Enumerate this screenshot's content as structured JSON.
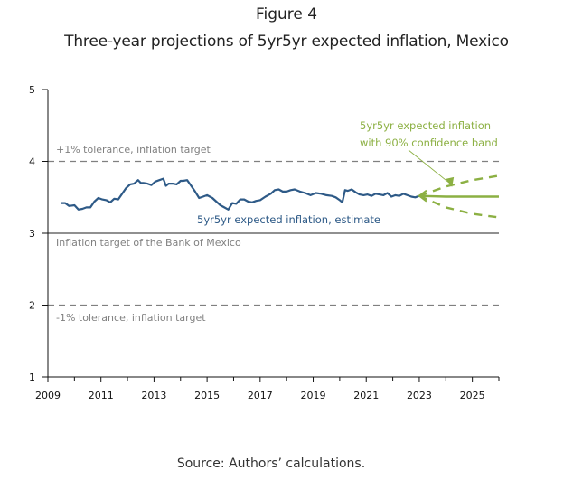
{
  "figure_label": "Figure 4",
  "title": "Three-year projections of 5yr5yr expected inflation, Mexico",
  "source": "Source: Authors’ calculations.",
  "colors": {
    "estimate": "#2e5a87",
    "projection": "#8cb043",
    "reference": "#808080",
    "axis": "#111111"
  },
  "chart_data": {
    "type": "line",
    "title": "Three-year projections of 5yr5yr expected inflation, Mexico",
    "xlabel": "",
    "ylabel": "",
    "xlim": [
      2009,
      2026
    ],
    "ylim": [
      1,
      5
    ],
    "grid": false,
    "x_ticks": [
      2009,
      2011,
      2013,
      2015,
      2017,
      2019,
      2021,
      2023,
      2025
    ],
    "x_tick_labels": [
      "2009",
      "2011",
      "2013",
      "2015",
      "2017",
      "2019",
      "2021",
      "2023",
      "2025"
    ],
    "y_ticks": [
      1,
      2,
      3,
      4,
      5
    ],
    "y_tick_labels": [
      "1",
      "2",
      "3",
      "4",
      "5"
    ],
    "reference_lines": [
      {
        "name": "upper-tolerance",
        "y": 4,
        "style": "dashed",
        "label": "+1% tolerance, inflation target"
      },
      {
        "name": "inflation-target",
        "y": 3,
        "style": "solid",
        "label": "Inflation target of the Bank of Mexico"
      },
      {
        "name": "lower-tolerance",
        "y": 2,
        "style": "dashed",
        "label": "-1% tolerance, inflation target"
      }
    ],
    "series": [
      {
        "name": "5yr5yr expected inflation, estimate",
        "label": "5yr5yr expected inflation, estimate",
        "style": "solid",
        "x": [
          2009.5,
          2009.65,
          2009.8,
          2010.0,
          2010.15,
          2010.3,
          2010.45,
          2010.6,
          2010.75,
          2010.9,
          2011.05,
          2011.2,
          2011.35,
          2011.5,
          2011.65,
          2011.8,
          2011.95,
          2012.1,
          2012.25,
          2012.4,
          2012.5,
          2012.6,
          2012.75,
          2012.9,
          2013.05,
          2013.2,
          2013.35,
          2013.45,
          2013.55,
          2013.7,
          2013.85,
          2014.0,
          2014.1,
          2014.25,
          2014.4,
          2014.55,
          2014.7,
          2014.85,
          2015.0,
          2015.2,
          2015.35,
          2015.5,
          2015.65,
          2015.8,
          2015.95,
          2016.1,
          2016.25,
          2016.4,
          2016.55,
          2016.7,
          2016.85,
          2017.0,
          2017.2,
          2017.4,
          2017.55,
          2017.7,
          2017.85,
          2018.0,
          2018.15,
          2018.3,
          2018.5,
          2018.7,
          2018.9,
          2019.1,
          2019.3,
          2019.5,
          2019.7,
          2019.85,
          2020.0,
          2020.1,
          2020.2,
          2020.3,
          2020.45,
          2020.6,
          2020.75,
          2020.9,
          2021.05,
          2021.2,
          2021.35,
          2021.5,
          2021.65,
          2021.8,
          2021.95,
          2022.1,
          2022.25,
          2022.4,
          2022.55,
          2022.7,
          2022.85,
          2023.0
        ],
        "y": [
          3.42,
          3.42,
          3.38,
          3.39,
          3.33,
          3.34,
          3.36,
          3.36,
          3.44,
          3.49,
          3.47,
          3.46,
          3.43,
          3.48,
          3.47,
          3.55,
          3.63,
          3.68,
          3.69,
          3.74,
          3.7,
          3.7,
          3.69,
          3.67,
          3.72,
          3.74,
          3.76,
          3.66,
          3.69,
          3.69,
          3.68,
          3.73,
          3.73,
          3.74,
          3.66,
          3.58,
          3.49,
          3.51,
          3.53,
          3.49,
          3.44,
          3.39,
          3.36,
          3.33,
          3.42,
          3.41,
          3.47,
          3.47,
          3.44,
          3.43,
          3.45,
          3.46,
          3.51,
          3.55,
          3.6,
          3.61,
          3.58,
          3.58,
          3.6,
          3.61,
          3.58,
          3.56,
          3.53,
          3.56,
          3.55,
          3.53,
          3.52,
          3.5,
          3.46,
          3.43,
          3.6,
          3.59,
          3.61,
          3.57,
          3.54,
          3.53,
          3.54,
          3.52,
          3.55,
          3.54,
          3.53,
          3.56,
          3.51,
          3.53,
          3.52,
          3.55,
          3.53,
          3.51,
          3.5,
          3.52
        ]
      },
      {
        "name": "5yr5yr expected inflation projection",
        "label": "5yr5yr expected inflation with 90% confidence band",
        "style": "solid",
        "x": [
          2023.0,
          2024.0,
          2025.0,
          2026.0
        ],
        "y": [
          3.52,
          3.51,
          3.51,
          3.51
        ]
      },
      {
        "name": "90% confidence band upper",
        "style": "dashed",
        "x": [
          2023.0,
          2024.0,
          2025.0,
          2026.0
        ],
        "y": [
          3.52,
          3.65,
          3.74,
          3.8
        ]
      },
      {
        "name": "90% confidence band lower",
        "style": "dashed",
        "x": [
          2023.0,
          2024.0,
          2025.0,
          2026.0
        ],
        "y": [
          3.52,
          3.36,
          3.27,
          3.22
        ]
      }
    ],
    "annotations": [
      {
        "text": "5yr5yr expected inflation, estimate",
        "color": "#2e5a87",
        "anchor": [
          2015.3,
          3.18
        ]
      },
      {
        "text_lines": [
          "5yr5yr expected inflation",
          "with 90% confidence band"
        ],
        "color": "#8cb043",
        "anchor": [
          2024.2,
          4.5
        ],
        "arrow_to": [
          2024.2,
          3.63
        ]
      }
    ],
    "legend": "none"
  }
}
